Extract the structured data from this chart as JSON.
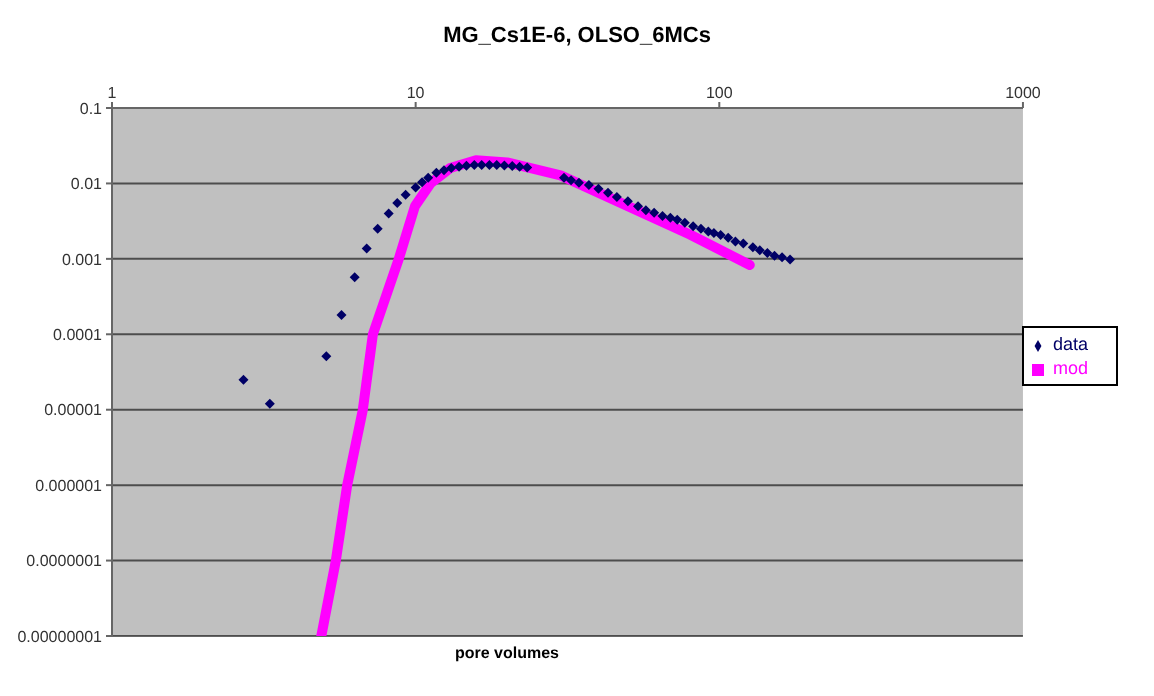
{
  "chart_data": {
    "type": "scatter",
    "title": "MG_Cs1E-6, OLSO_6MCs",
    "xlabel": "pore volumes",
    "log": "xy",
    "grid": "y",
    "legend": "right",
    "xlim": [
      1,
      1000
    ],
    "xticks": [
      1,
      10,
      100,
      1000
    ],
    "ylim": [
      1e-08,
      0.1
    ],
    "yticks": [
      {
        "value": 1e-08,
        "label": "0.00000001"
      },
      {
        "value": 1e-07,
        "label": "0.0000001"
      },
      {
        "value": 1e-06,
        "label": "0.000001"
      },
      {
        "value": 1e-05,
        "label": "0.00001"
      },
      {
        "value": 0.0001,
        "label": "0.0001"
      },
      {
        "value": 0.001,
        "label": "0.001"
      },
      {
        "value": 0.01,
        "label": "0.01"
      },
      {
        "value": 0.1,
        "label": "0.1"
      }
    ],
    "series": [
      {
        "name": "data",
        "marker": "diamond",
        "color": "#000066",
        "x": [
          2.71,
          3.31,
          5.08,
          5.7,
          6.3,
          6.9,
          7.5,
          8.15,
          8.7,
          9.27,
          10,
          10.5,
          11,
          11.7,
          12.4,
          13.1,
          13.9,
          14.7,
          15.6,
          16.5,
          17.5,
          18.5,
          19.6,
          20.8,
          22,
          23.3,
          30.8,
          32.5,
          34.5,
          37.2,
          40,
          43,
          46,
          50,
          54,
          57.3,
          61,
          65,
          69,
          72.7,
          77,
          82,
          87,
          92,
          96,
          101,
          107,
          113,
          120,
          129,
          136,
          144,
          152,
          161,
          171
        ],
        "values": [
          2.5e-05,
          1.2e-05,
          5.1e-05,
          0.00018,
          0.00057,
          0.00137,
          0.0025,
          0.004,
          0.0055,
          0.0071,
          0.0088,
          0.0104,
          0.0119,
          0.0139,
          0.015,
          0.016,
          0.0167,
          0.0172,
          0.0175,
          0.0176,
          0.0176,
          0.0175,
          0.0173,
          0.017,
          0.0167,
          0.0163,
          0.0119,
          0.011,
          0.0102,
          0.0095,
          0.0085,
          0.0075,
          0.0066,
          0.0058,
          0.005,
          0.0044,
          0.0041,
          0.0037,
          0.0035,
          0.0033,
          0.003,
          0.0027,
          0.0025,
          0.0023,
          0.0022,
          0.00207,
          0.0019,
          0.0017,
          0.0016,
          0.00142,
          0.0013,
          0.0012,
          0.0011,
          0.00105,
          0.00098
        ]
      },
      {
        "name": "mod",
        "type": "line",
        "marker": "none",
        "color": "#ff00ff",
        "x": [
          4.89,
          5.46,
          5.95,
          6.7,
          7.23,
          8.8,
          9.95,
          11.2,
          13,
          15.8,
          20,
          30,
          50,
          80,
          126
        ],
        "values": [
          1e-08,
          1e-07,
          1e-06,
          1e-05,
          0.0001,
          0.001,
          0.005,
          0.01,
          0.016,
          0.0203,
          0.019,
          0.0128,
          0.005,
          0.0021,
          0.00083
        ]
      }
    ]
  }
}
